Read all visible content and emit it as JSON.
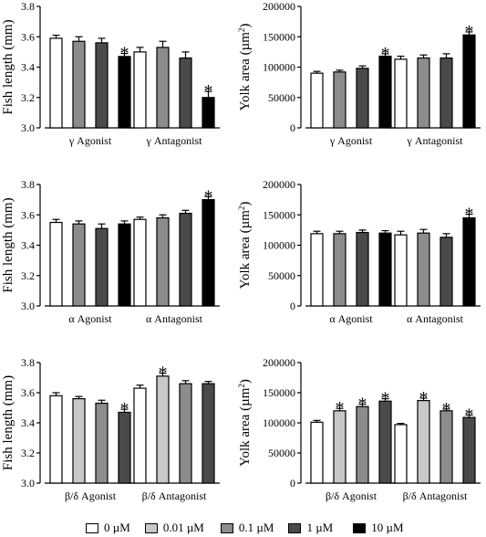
{
  "colors": {
    "0 µM": "#ffffff",
    "0.01 µM": "#c8c8c8",
    "0.1 µM": "#8c8c8c",
    "1 µM": "#4a4a4a",
    "10 µM": "#000000",
    "outline": "#000000"
  },
  "legend": {
    "items": [
      {
        "label": "0 µM",
        "color": "#ffffff"
      },
      {
        "label": "0.01 µM",
        "color": "#c8c8c8"
      },
      {
        "label": "0.1 µM",
        "color": "#8c8c8c"
      },
      {
        "label": "1 µM",
        "color": "#4a4a4a"
      },
      {
        "label": "10 µM",
        "color": "#000000"
      }
    ]
  },
  "chart_data": [
    {
      "type": "bar",
      "ylabel": "Fish length (mm)",
      "ylim": [
        3.0,
        3.8
      ],
      "yticks": [
        "3.0",
        "3.2",
        "3.4",
        "3.6",
        "3.8"
      ],
      "categories": [
        "γ Agonist",
        "γ Antagonist"
      ],
      "series": [
        {
          "name": "0 µM",
          "color": "#ffffff",
          "values": [
            3.59,
            3.5
          ],
          "errors": [
            0.02,
            0.03
          ],
          "significant": [
            false,
            false
          ]
        },
        {
          "name": "0.1 µM",
          "color": "#8c8c8c",
          "values": [
            3.57,
            3.53
          ],
          "errors": [
            0.03,
            0.04
          ],
          "significant": [
            false,
            false
          ]
        },
        {
          "name": "1 µM",
          "color": "#4a4a4a",
          "values": [
            3.56,
            3.46
          ],
          "errors": [
            0.03,
            0.04
          ],
          "significant": [
            false,
            false
          ]
        },
        {
          "name": "10 µM",
          "color": "#000000",
          "values": [
            3.47,
            3.2
          ],
          "errors": [
            0.02,
            0.04
          ],
          "significant": [
            true,
            true
          ]
        }
      ],
      "significance_marker": "*"
    },
    {
      "type": "bar",
      "ylabel": "Yolk area (µm²)",
      "ylim": [
        0,
        200000
      ],
      "yticks": [
        "0",
        "50000",
        "100000",
        "150000",
        "200000"
      ],
      "categories": [
        "γ Agonist",
        "γ Antagonist"
      ],
      "series": [
        {
          "name": "0 µM",
          "color": "#ffffff",
          "values": [
            90000,
            113000
          ],
          "errors": [
            3000,
            5000
          ],
          "significant": [
            false,
            false
          ]
        },
        {
          "name": "0.1 µM",
          "color": "#8c8c8c",
          "values": [
            92000,
            115000
          ],
          "errors": [
            3000,
            5000
          ],
          "significant": [
            false,
            false
          ]
        },
        {
          "name": "1 µM",
          "color": "#4a4a4a",
          "values": [
            98000,
            115000
          ],
          "errors": [
            4000,
            7000
          ],
          "significant": [
            false,
            false
          ]
        },
        {
          "name": "10 µM",
          "color": "#000000",
          "values": [
            118000,
            153000
          ],
          "errors": [
            4000,
            5000
          ],
          "significant": [
            true,
            true
          ]
        }
      ],
      "significance_marker": "*"
    },
    {
      "type": "bar",
      "ylabel": "Fish length (mm)",
      "ylim": [
        3.0,
        3.8
      ],
      "yticks": [
        "3.0",
        "3.2",
        "3.4",
        "3.6",
        "3.8"
      ],
      "categories": [
        "α Agonist",
        "α Antagonist"
      ],
      "series": [
        {
          "name": "0 µM",
          "color": "#ffffff",
          "values": [
            3.55,
            3.57
          ],
          "errors": [
            0.02,
            0.015
          ],
          "significant": [
            false,
            false
          ]
        },
        {
          "name": "0.1 µM",
          "color": "#8c8c8c",
          "values": [
            3.54,
            3.58
          ],
          "errors": [
            0.02,
            0.02
          ],
          "significant": [
            false,
            false
          ]
        },
        {
          "name": "1 µM",
          "color": "#4a4a4a",
          "values": [
            3.51,
            3.61
          ],
          "errors": [
            0.03,
            0.02
          ],
          "significant": [
            false,
            false
          ]
        },
        {
          "name": "10 µM",
          "color": "#000000",
          "values": [
            3.54,
            3.7
          ],
          "errors": [
            0.02,
            0.02
          ],
          "significant": [
            false,
            true
          ]
        }
      ],
      "significance_marker": "*"
    },
    {
      "type": "bar",
      "ylabel": "Yolk area (µm²)",
      "ylim": [
        0,
        200000
      ],
      "yticks": [
        "0",
        "50000",
        "100000",
        "150000",
        "200000"
      ],
      "categories": [
        "α Agonist",
        "α Antagonist"
      ],
      "series": [
        {
          "name": "0 µM",
          "color": "#ffffff",
          "values": [
            119000,
            117000
          ],
          "errors": [
            4000,
            6000
          ],
          "significant": [
            false,
            false
          ]
        },
        {
          "name": "0.1 µM",
          "color": "#8c8c8c",
          "values": [
            119000,
            120000
          ],
          "errors": [
            4000,
            6000
          ],
          "significant": [
            false,
            false
          ]
        },
        {
          "name": "1 µM",
          "color": "#4a4a4a",
          "values": [
            121000,
            113000
          ],
          "errors": [
            4000,
            6000
          ],
          "significant": [
            false,
            false
          ]
        },
        {
          "name": "10 µM",
          "color": "#000000",
          "values": [
            120000,
            145000
          ],
          "errors": [
            4000,
            6000
          ],
          "significant": [
            false,
            true
          ]
        }
      ],
      "significance_marker": "*"
    },
    {
      "type": "bar",
      "ylabel": "Fish length (mm)",
      "ylim": [
        3.0,
        3.8
      ],
      "yticks": [
        "3.0",
        "3.2",
        "3.4",
        "3.6",
        "3.8"
      ],
      "categories": [
        "β/δ Agonist",
        "β/δ Antagonist"
      ],
      "series": [
        {
          "name": "0 µM",
          "color": "#ffffff",
          "values": [
            3.58,
            3.63
          ],
          "errors": [
            0.02,
            0.02
          ],
          "significant": [
            false,
            false
          ]
        },
        {
          "name": "0.01 µM",
          "color": "#c8c8c8",
          "values": [
            3.56,
            3.71
          ],
          "errors": [
            0.015,
            0.02
          ],
          "significant": [
            false,
            true
          ]
        },
        {
          "name": "0.1 µM",
          "color": "#8c8c8c",
          "values": [
            3.53,
            3.66
          ],
          "errors": [
            0.02,
            0.02
          ],
          "significant": [
            false,
            false
          ]
        },
        {
          "name": "1 µM",
          "color": "#4a4a4a",
          "values": [
            3.47,
            3.66
          ],
          "errors": [
            0.02,
            0.015
          ],
          "significant": [
            true,
            false
          ]
        }
      ],
      "significance_marker": "*"
    },
    {
      "type": "bar",
      "ylabel": "Yolk area (µm²)",
      "ylim": [
        0,
        200000
      ],
      "yticks": [
        "0",
        "50000",
        "100000",
        "150000",
        "200000"
      ],
      "categories": [
        "β/δ Agonist",
        "β/δ Antagonist"
      ],
      "series": [
        {
          "name": "0 µM",
          "color": "#ffffff",
          "values": [
            101000,
            97000
          ],
          "errors": [
            3000,
            2000
          ],
          "significant": [
            false,
            false
          ]
        },
        {
          "name": "0.01 µM",
          "color": "#c8c8c8",
          "values": [
            120000,
            137000
          ],
          "errors": [
            4000,
            4000
          ],
          "significant": [
            true,
            true
          ]
        },
        {
          "name": "0.1 µM",
          "color": "#8c8c8c",
          "values": [
            127000,
            120000
          ],
          "errors": [
            4000,
            3000
          ],
          "significant": [
            true,
            true
          ]
        },
        {
          "name": "1 µM",
          "color": "#4a4a4a",
          "values": [
            136000,
            109000
          ],
          "errors": [
            4000,
            4000
          ],
          "significant": [
            true,
            true
          ]
        }
      ],
      "significance_marker": "*"
    }
  ]
}
